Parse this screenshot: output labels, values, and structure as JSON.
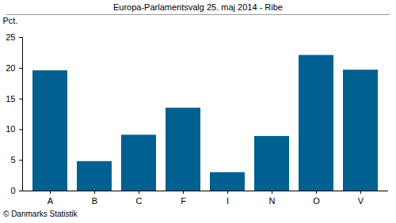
{
  "chart_data": {
    "type": "bar",
    "title": "Europa-Parlamentsvalg 25. maj 2014 - Ribe",
    "y_label": "Pct.",
    "caption": "© Danmarks Statistik",
    "categories": [
      "A",
      "B",
      "C",
      "F",
      "I",
      "N",
      "O",
      "V"
    ],
    "values": [
      19.6,
      4.8,
      9.1,
      13.5,
      3.0,
      8.9,
      22.1,
      19.7
    ],
    "color": "#00608f",
    "ylim": [
      0,
      25
    ],
    "yticks": [
      0,
      5,
      10,
      15,
      20,
      25
    ],
    "grid": false
  }
}
